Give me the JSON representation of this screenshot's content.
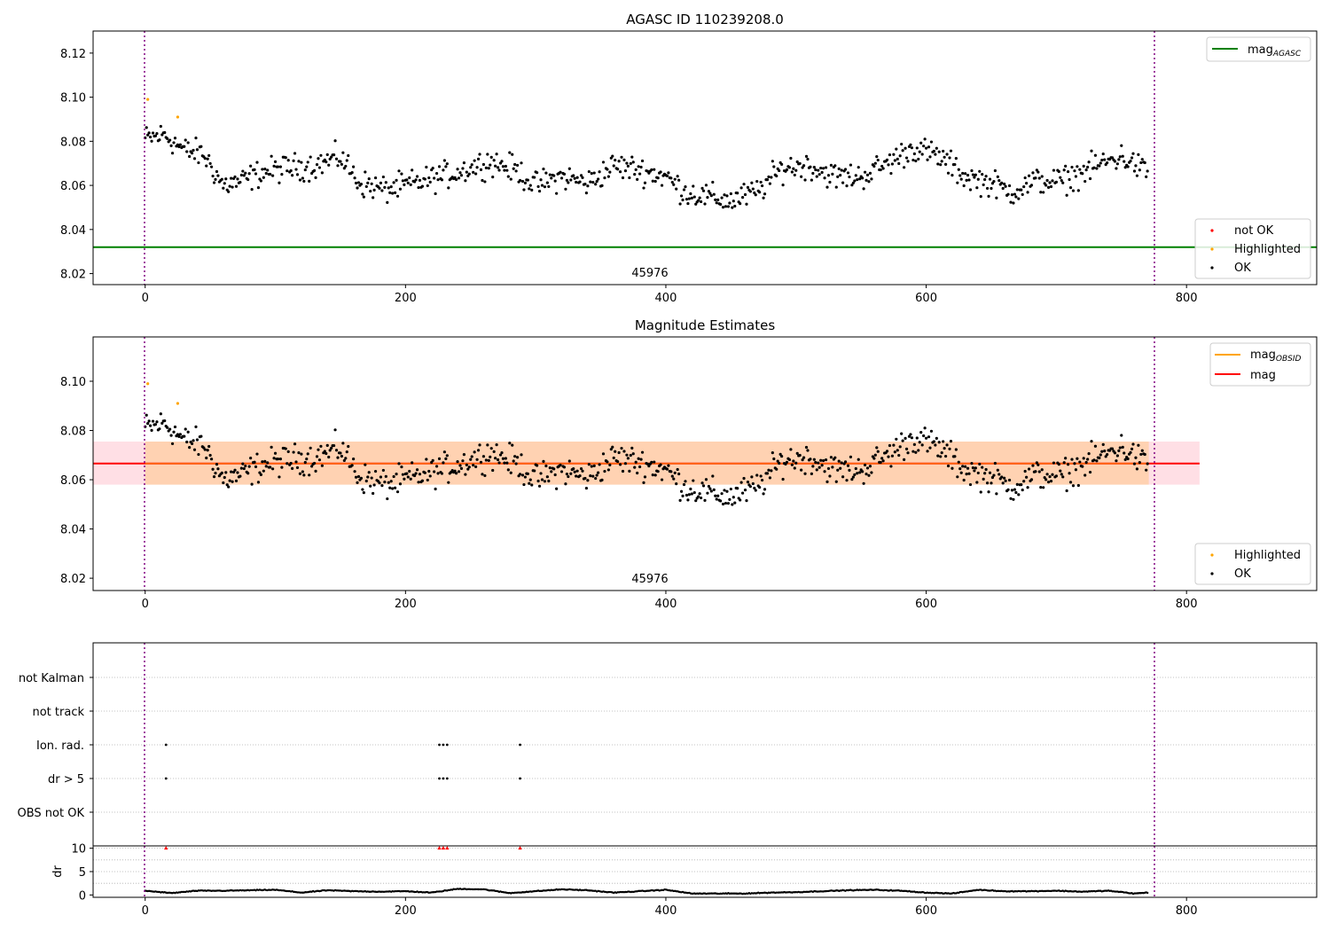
{
  "figure": {
    "background": "#ffffff"
  },
  "chart_data": [
    {
      "type": "scatter",
      "title": "AGASC ID 110239208.0",
      "xlabel": "",
      "ylabel": "",
      "xlim": [
        -40,
        900
      ],
      "ylim": [
        8.015,
        8.13
      ],
      "xticks": [
        "0",
        "200",
        "400",
        "600",
        "800"
      ],
      "yticks": [
        "8.02",
        "8.04",
        "8.06",
        "8.08",
        "8.10",
        "8.12"
      ],
      "obsid_label": "45976",
      "obs_bounds": [
        0,
        771
      ],
      "reference_line": {
        "name": "mag_AGASC",
        "value": 8.032,
        "color": "#008000"
      },
      "series": [
        {
          "name": "not OK",
          "color": "#ff0000",
          "points": []
        },
        {
          "name": "Highlighted",
          "color": "#ffa500",
          "points": [
            [
              2,
              8.099
            ],
            [
              25,
              8.091
            ]
          ]
        },
        {
          "name": "OK",
          "color": "#000000",
          "generated_from": "mag_trend"
        }
      ],
      "mag_trend": {
        "x": [
          0,
          15,
          30,
          45,
          60,
          75,
          90,
          110,
          130,
          150,
          165,
          185,
          200,
          220,
          240,
          265,
          285,
          300,
          320,
          340,
          360,
          380,
          400,
          415,
          430,
          450,
          470,
          490,
          510,
          530,
          550,
          570,
          590,
          610,
          630,
          650,
          665,
          685,
          705,
          720,
          735,
          750,
          770
        ],
        "y": [
          8.081,
          8.083,
          8.076,
          8.074,
          8.06,
          8.062,
          8.066,
          8.068,
          8.069,
          8.073,
          8.061,
          8.058,
          8.06,
          8.063,
          8.066,
          8.071,
          8.067,
          8.06,
          8.064,
          8.061,
          8.069,
          8.067,
          8.064,
          8.057,
          8.055,
          8.053,
          8.057,
          8.068,
          8.069,
          8.064,
          8.064,
          8.07,
          8.077,
          8.073,
          8.064,
          8.061,
          8.057,
          8.062,
          8.062,
          8.066,
          8.07,
          8.073,
          8.066
        ]
      },
      "legend_lines": {
        "placement": "upper right",
        "entries": [
          "mag",
          "AGASC"
        ]
      },
      "legend_points": {
        "placement": "lower right",
        "entries": [
          "not OK",
          "Highlighted",
          "OK"
        ]
      }
    },
    {
      "type": "scatter",
      "title": "Magnitude Estimates",
      "xlabel": "",
      "ylabel": "",
      "xlim": [
        -40,
        900
      ],
      "ylim": [
        8.015,
        8.118
      ],
      "xticks": [
        "0",
        "200",
        "400",
        "600",
        "800"
      ],
      "yticks": [
        "8.02",
        "8.04",
        "8.06",
        "8.08",
        "8.10"
      ],
      "obsid_label": "45976",
      "obs_bounds": [
        0,
        771
      ],
      "mag": {
        "name": "mag",
        "value": 8.0666,
        "color": "#ff0000",
        "band": [
          8.058,
          8.0755
        ],
        "band_x": [
          -40,
          810
        ],
        "band_color": "#ffc0cb"
      },
      "mag_obsid": {
        "name": "mag_OBSID",
        "value": 8.0666,
        "color": "#ffa500",
        "band": [
          8.058,
          8.0755
        ],
        "band_x": [
          0,
          771
        ]
      },
      "series": [
        {
          "name": "Highlighted",
          "color": "#ffa500",
          "points": [
            [
              2,
              8.099
            ],
            [
              25,
              8.091
            ]
          ]
        },
        {
          "name": "OK",
          "color": "#000000",
          "generated_from": "mag_trend"
        }
      ],
      "legend_lines": {
        "placement": "upper right",
        "entries": [
          "mag",
          "OBSID",
          "mag"
        ]
      },
      "legend_points": {
        "placement": "lower right",
        "entries": [
          "Highlighted",
          "OK"
        ]
      }
    },
    {
      "type": "scatter",
      "title": "",
      "xlim": [
        -40,
        900
      ],
      "categories": [
        "not Kalman",
        "not track",
        "Ion. rad.",
        "dr > 5",
        "OBS not OK"
      ],
      "flags": {
        "Ion. rad.": [
          16,
          226,
          229,
          232,
          288
        ],
        "dr > 5": [
          16,
          226,
          229,
          232,
          288
        ]
      },
      "obs_bounds": [
        0,
        771
      ]
    },
    {
      "type": "scatter",
      "title": "",
      "ylabel": "dr",
      "xlim": [
        -40,
        900
      ],
      "ylim": [
        -0.5,
        10.5
      ],
      "xticks": [
        "0",
        "200",
        "400",
        "600",
        "800"
      ],
      "yticks": [
        "0",
        "5",
        "10"
      ],
      "clipped_points": {
        "y": 10,
        "x": [
          16,
          226,
          229,
          232,
          288
        ],
        "color": "#ff0000"
      },
      "dr_trend": {
        "x": [
          0,
          20,
          40,
          60,
          80,
          100,
          120,
          140,
          160,
          180,
          200,
          220,
          240,
          260,
          280,
          300,
          320,
          340,
          360,
          380,
          400,
          420,
          440,
          460,
          480,
          500,
          520,
          540,
          560,
          580,
          600,
          620,
          640,
          660,
          680,
          700,
          720,
          740,
          760,
          770
        ],
        "y": [
          0.9,
          0.4,
          0.9,
          0.9,
          1.0,
          1.1,
          0.5,
          1.0,
          0.8,
          0.7,
          0.8,
          0.5,
          1.3,
          1.2,
          0.4,
          0.8,
          1.2,
          1.0,
          0.5,
          0.8,
          1.1,
          0.3,
          0.3,
          0.3,
          0.5,
          0.6,
          0.8,
          1.0,
          1.1,
          0.9,
          0.5,
          0.3,
          1.1,
          0.8,
          0.8,
          0.9,
          0.7,
          0.9,
          0.3,
          0.5
        ]
      }
    }
  ]
}
